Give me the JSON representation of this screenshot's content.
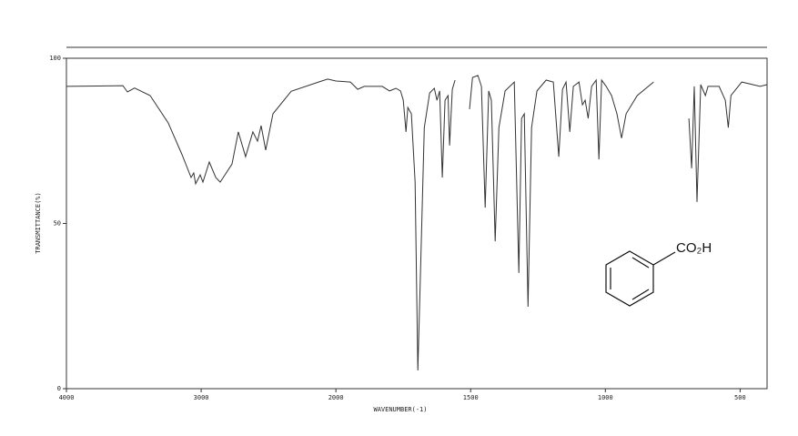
{
  "chart_data": {
    "type": "line",
    "x_label": "WAVENUMBER(-1)",
    "y_label": "TRANSMITTANCE(%)",
    "annotation": "CO₂H",
    "color": "#333333",
    "xlim": [
      4000,
      400
    ],
    "xscale_break": 2000,
    "xscale_factor_below_break": 2,
    "xticks": [
      4000,
      3000,
      2000,
      1500,
      1000,
      500
    ],
    "ylim": [
      0,
      100
    ],
    "yticks": [
      0,
      50,
      100
    ],
    "x": [
      4000,
      3581,
      3547,
      3494,
      3379,
      3244,
      3142,
      3075,
      3055,
      3041,
      3007,
      2987,
      2940,
      2892,
      2859,
      2771,
      2724,
      2670,
      2616,
      2582,
      2555,
      2521,
      2467,
      2332,
      2129,
      2061,
      2000,
      1946,
      1919,
      1895,
      1828,
      1801,
      1777,
      1760,
      1750,
      1740,
      1733,
      1720,
      1706,
      1696,
      1686,
      1672,
      1652,
      1635,
      1625,
      1615,
      1605,
      1595,
      1584,
      1578,
      1568,
      1558,
      1530,
      1504,
      1493,
      1473,
      1460,
      1446,
      1433,
      1423,
      1409,
      1395,
      1372,
      1338,
      1321,
      1311,
      1301,
      1287,
      1274,
      1254,
      1220,
      1193,
      1173,
      1159,
      1146,
      1132,
      1119,
      1098,
      1085,
      1075,
      1064,
      1051,
      1034,
      1024,
      1014,
      997,
      977,
      957,
      940,
      923,
      882,
      821,
      750,
      690,
      680,
      670,
      660,
      646,
      629,
      619,
      578,
      555,
      544,
      534,
      494,
      426,
      400
    ],
    "values": [
      91.5,
      91.7,
      89.8,
      91,
      88.7,
      80.4,
      70.8,
      63.9,
      65.3,
      62,
      64.7,
      62.5,
      68.6,
      63.9,
      62.5,
      68,
      77.7,
      70.2,
      77.7,
      74.9,
      79.6,
      72.2,
      83.2,
      90,
      92.8,
      93.7,
      93.1,
      92.8,
      90.6,
      91.5,
      91.5,
      90.1,
      90.9,
      90.1,
      87.3,
      77.7,
      85.1,
      83.2,
      62.5,
      5.5,
      35,
      79,
      89.5,
      90.9,
      87.3,
      90.1,
      63.9,
      87.3,
      88.7,
      73.6,
      90.6,
      93.4,
      null,
      84.6,
      94.2,
      94.8,
      91.5,
      54.8,
      90.1,
      87.3,
      44.6,
      79,
      90.1,
      92.8,
      35,
      81.8,
      83.2,
      24.8,
      79,
      90.1,
      93.4,
      92.8,
      70.2,
      90.6,
      92.8,
      77.7,
      91.5,
      92.8,
      85.9,
      87.3,
      81.8,
      91.5,
      93.4,
      69.4,
      93.4,
      91.5,
      88.7,
      83.2,
      75.8,
      83.2,
      88.7,
      92.8,
      null,
      81.8,
      66.7,
      91.5,
      56.5,
      92,
      88.7,
      91.5,
      91.5,
      87.3,
      79,
      88.7,
      92.8,
      91.5,
      92
    ]
  }
}
